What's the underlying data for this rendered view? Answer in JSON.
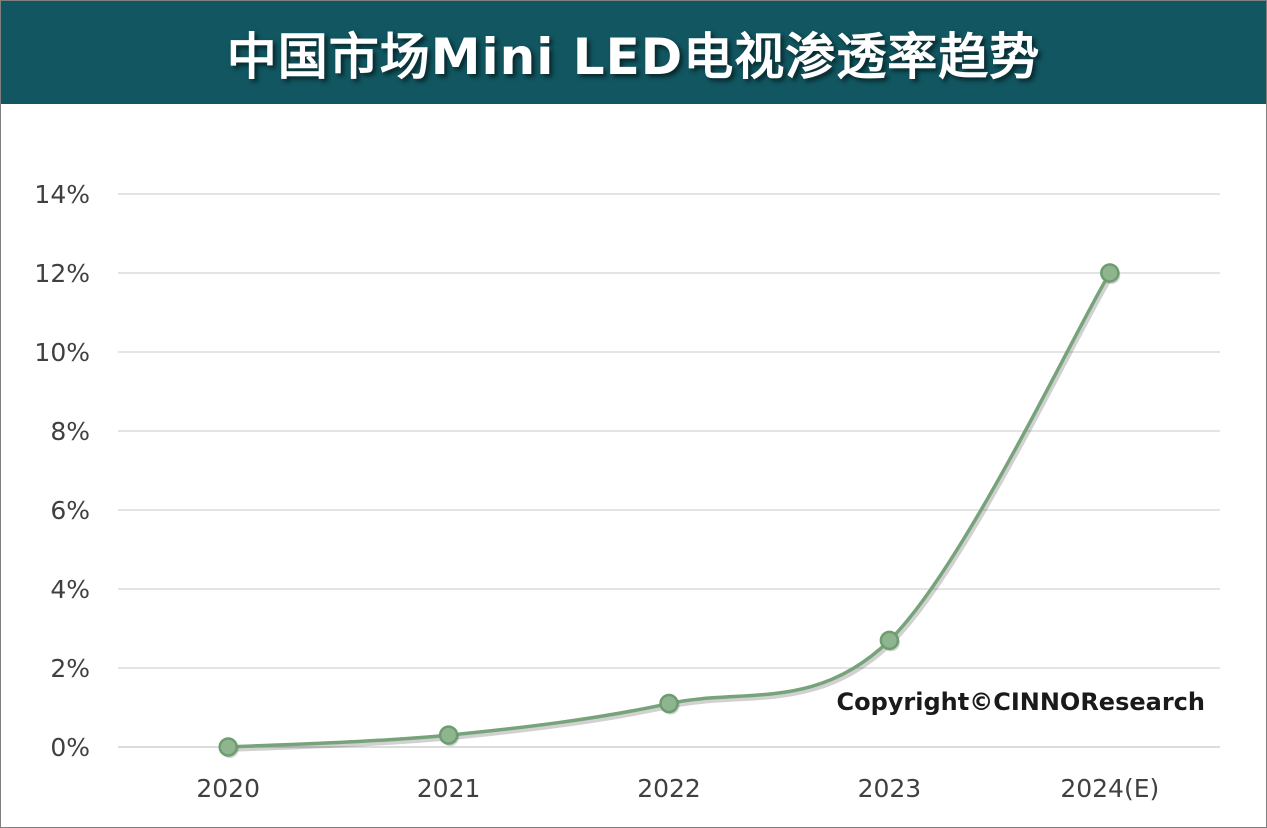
{
  "chart_data": {
    "type": "line",
    "title": "中国市场Mini LED电视渗透率趋势",
    "categories": [
      "2020",
      "2021",
      "2022",
      "2023",
      "2024(E)"
    ],
    "series": [
      {
        "values": [
          0.0,
          0.3,
          1.1,
          2.7,
          12.0
        ]
      }
    ],
    "y_ticks": [
      "0%",
      "2%",
      "4%",
      "6%",
      "8%",
      "10%",
      "12%",
      "14%"
    ],
    "ylim": [
      0,
      14
    ],
    "y_unit": "%",
    "grid": true,
    "line_color": "#77a37a",
    "title_bar_color": "#115660",
    "annotation": "Copyright©CINNOResearch"
  }
}
